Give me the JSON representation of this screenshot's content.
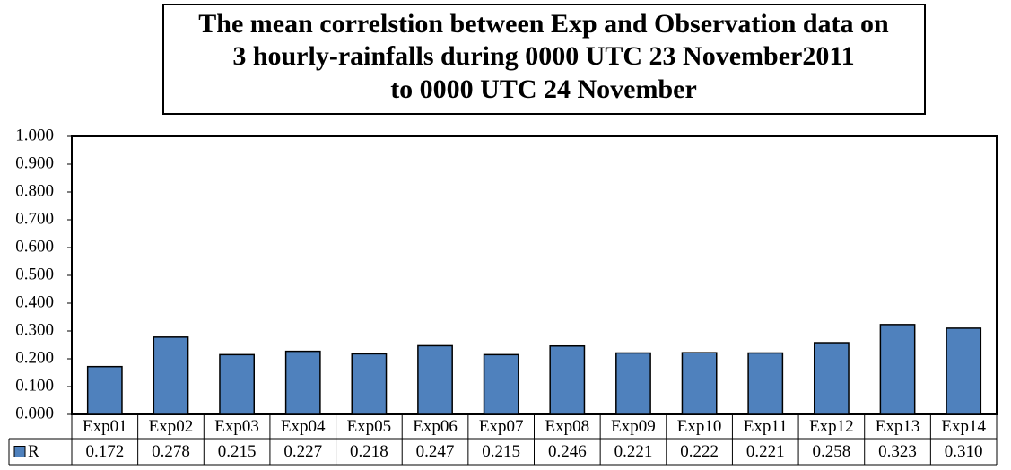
{
  "chart_data": {
    "type": "bar",
    "title": [
      "The mean correlstion between Exp and Observation data on",
      "3 hourly-rainfalls during 0000 UTC 23 November2011",
      "to 0000 UTC 24 November"
    ],
    "categories": [
      "Exp01",
      "Exp02",
      "Exp03",
      "Exp04",
      "Exp05",
      "Exp06",
      "Exp07",
      "Exp08",
      "Exp09",
      "Exp10",
      "Exp11",
      "Exp12",
      "Exp13",
      "Exp14"
    ],
    "series": [
      {
        "name": "R",
        "color": "#4f81bd",
        "values": [
          0.172,
          0.278,
          0.215,
          0.227,
          0.218,
          0.247,
          0.215,
          0.246,
          0.221,
          0.222,
          0.221,
          0.258,
          0.323,
          0.31
        ],
        "value_labels": [
          "0.172",
          "0.278",
          "0.215",
          "0.227",
          "0.218",
          "0.247",
          "0.215",
          "0.246",
          "0.221",
          "0.222",
          "0.221",
          "0.258",
          "0.323",
          "0.310"
        ]
      }
    ],
    "ylim": [
      0,
      1
    ],
    "yticks": [
      {
        "value": 0,
        "label": "0.000"
      },
      {
        "value": 0.1,
        "label": "0.100"
      },
      {
        "value": 0.2,
        "label": "0.200"
      },
      {
        "value": 0.3,
        "label": "0.300"
      },
      {
        "value": 0.4,
        "label": "0.400"
      },
      {
        "value": 0.5,
        "label": "0.500"
      },
      {
        "value": 0.6,
        "label": "0.600"
      },
      {
        "value": 0.7,
        "label": "0.700"
      },
      {
        "value": 0.8,
        "label": "0.800"
      },
      {
        "value": 0.9,
        "label": "0.900"
      },
      {
        "value": 1,
        "label": "1.000"
      }
    ],
    "grid": false
  }
}
